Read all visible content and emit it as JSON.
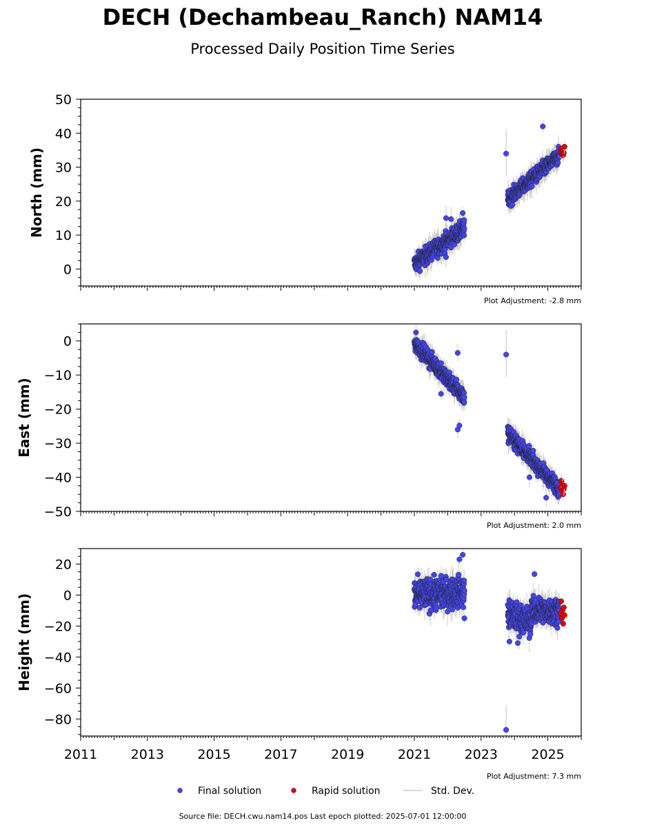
{
  "figure": {
    "title": "DECH (Dechambeau_Ranch) NAM14",
    "subtitle": "Processed Daily Position Time Series",
    "footer": "Source file: DECH.cwu.nam14.pos  Last epoch plotted: 2025-07-01 12:00:00"
  },
  "legend": {
    "items": [
      {
        "label": "Final solution",
        "color": "#4545ee"
      },
      {
        "label": "Rapid solution",
        "color": "#e00000"
      },
      {
        "label": "Std. Dev.",
        "color": "#cccccc"
      }
    ]
  },
  "chart_data": [
    {
      "type": "scatter",
      "ylabel": "North (mm)",
      "adjustment": "Plot Adjustment: -2.8 mm",
      "xlim": [
        2011,
        2026
      ],
      "ylim": [
        -5,
        50
      ],
      "yticks": [
        0,
        10,
        20,
        30,
        40,
        50
      ],
      "ytick_labels": [
        "0",
        "10",
        "20",
        "30",
        "40",
        "50"
      ],
      "xticks": [
        2011,
        2013,
        2015,
        2017,
        2019,
        2021,
        2023,
        2025
      ],
      "xtick_labels": [],
      "grid": false,
      "series": [
        {
          "name": "Final solution",
          "segments": [
            {
              "x0": 2021.0,
              "x1": 2022.5,
              "y0": 1.5,
              "y1": 12.0,
              "sigma": 1.8
            },
            {
              "x0": 2023.8,
              "x1": 2025.35,
              "y0": 20.5,
              "y1": 33.5,
              "sigma": 1.6
            }
          ],
          "outliers": [
            [
              2023.75,
              34.0
            ],
            [
              2024.85,
              42.0
            ],
            [
              2021.95,
              15.0
            ],
            [
              2022.1,
              14.7
            ],
            [
              2022.45,
              16.5
            ],
            [
              2021.95,
              3.5
            ]
          ]
        },
        {
          "name": "Rapid solution",
          "points": [
            [
              2025.38,
              34.5
            ],
            [
              2025.4,
              35.5
            ],
            [
              2025.42,
              33.8
            ],
            [
              2025.44,
              34.8
            ],
            [
              2025.46,
              33.5
            ],
            [
              2025.48,
              34.2
            ],
            [
              2025.5,
              36.0
            ]
          ]
        }
      ]
    },
    {
      "type": "scatter",
      "ylabel": "East (mm)",
      "adjustment": "Plot Adjustment: 2.0 mm",
      "xlim": [
        2011,
        2026
      ],
      "ylim": [
        -50,
        5
      ],
      "yticks": [
        -50,
        -40,
        -30,
        -20,
        -10,
        0
      ],
      "ytick_labels": [
        "−50",
        "−40",
        "−30",
        "−20",
        "−10",
        "0"
      ],
      "xticks": [
        2011,
        2013,
        2015,
        2017,
        2019,
        2021,
        2023,
        2025
      ],
      "xtick_labels": [],
      "grid": false,
      "series": [
        {
          "name": "Final solution",
          "segments": [
            {
              "x0": 2021.0,
              "x1": 2022.5,
              "y0": -0.5,
              "y1": -16.5,
              "sigma": 1.6
            },
            {
              "x0": 2023.8,
              "x1": 2025.35,
              "y0": -27.0,
              "y1": -43.5,
              "sigma": 1.6
            }
          ],
          "outliers": [
            [
              2023.75,
              -4.0
            ],
            [
              2022.3,
              -26.0
            ],
            [
              2022.35,
              -24.8
            ],
            [
              2024.45,
              -40.0
            ],
            [
              2024.95,
              -46.0
            ],
            [
              2021.05,
              2.5
            ],
            [
              2022.3,
              -3.5
            ],
            [
              2021.8,
              -15.5
            ]
          ]
        },
        {
          "name": "Rapid solution",
          "points": [
            [
              2025.38,
              -43.0
            ],
            [
              2025.4,
              -41.0
            ],
            [
              2025.42,
              -44.0
            ],
            [
              2025.44,
              -42.0
            ],
            [
              2025.46,
              -45.0
            ],
            [
              2025.48,
              -43.5
            ],
            [
              2025.5,
              -42.5
            ]
          ]
        }
      ]
    },
    {
      "type": "scatter",
      "ylabel": "Height (mm)",
      "adjustment": "Plot Adjustment: 7.3 mm",
      "xlim": [
        2011,
        2026
      ],
      "ylim": [
        -91,
        30
      ],
      "yticks": [
        -80,
        -60,
        -40,
        -20,
        0,
        20
      ],
      "ytick_labels": [
        "−80",
        "−60",
        "−40",
        "−20",
        "0",
        "20"
      ],
      "xticks": [
        2011,
        2013,
        2015,
        2017,
        2019,
        2021,
        2023,
        2025
      ],
      "xtick_labels": [
        "2011",
        "2013",
        "2015",
        "2017",
        "2019",
        "2021",
        "2023",
        "2025"
      ],
      "grid": false,
      "series": [
        {
          "name": "Final solution",
          "segments": [
            {
              "x0": 2021.0,
              "x1": 2022.5,
              "y0": 0.0,
              "y1": 2.0,
              "sigma": 7.0
            },
            {
              "x0": 2023.8,
              "x1": 2024.5,
              "y0": -12.0,
              "y1": -18.0,
              "sigma": 6.5
            },
            {
              "x0": 2024.5,
              "x1": 2025.35,
              "y0": -10.0,
              "y1": -10.0,
              "sigma": 6.0
            }
          ],
          "outliers": [
            [
              2023.75,
              -87.0
            ],
            [
              2024.6,
              13.5
            ],
            [
              2022.35,
              23.0
            ],
            [
              2022.45,
              26.0
            ],
            [
              2023.85,
              -30.0
            ],
            [
              2024.1,
              -31.0
            ],
            [
              2022.5,
              -15.0
            ]
          ]
        },
        {
          "name": "Rapid solution",
          "points": [
            [
              2025.38,
              -12.0
            ],
            [
              2025.4,
              -4.0
            ],
            [
              2025.42,
              -15.0
            ],
            [
              2025.44,
              -10.0
            ],
            [
              2025.46,
              -18.5
            ],
            [
              2025.48,
              -8.0
            ],
            [
              2025.5,
              -13.0
            ]
          ]
        }
      ]
    }
  ]
}
